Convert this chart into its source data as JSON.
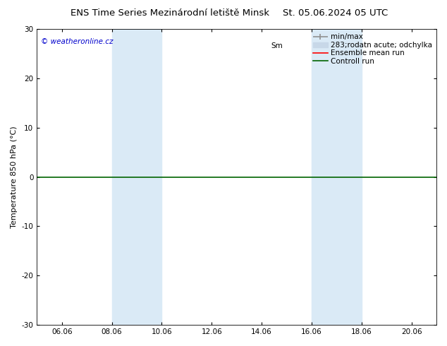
{
  "title_left": "ENS Time Series Mezinárodní letiště Minsk",
  "title_right": "St. 05.06.2024 05 UTC",
  "ylabel": "Temperature 850 hPa (°C)",
  "ylim": [
    -30,
    30
  ],
  "yticks": [
    -30,
    -20,
    -10,
    0,
    10,
    20,
    30
  ],
  "xtick_labels": [
    "06.06",
    "08.06",
    "10.06",
    "12.06",
    "14.06",
    "16.06",
    "18.06",
    "20.06"
  ],
  "xtick_positions": [
    2,
    4,
    6,
    8,
    10,
    12,
    14,
    16
  ],
  "xlim": [
    1,
    17
  ],
  "shade_bands": [
    {
      "x_start": 4,
      "x_end": 6
    },
    {
      "x_start": 12,
      "x_end": 14
    }
  ],
  "shade_color": "#daeaf6",
  "zero_line_color": "#006400",
  "zero_line_y": 0,
  "copyright_text": "© weatheronline.cz",
  "copyright_color": "#0000cc",
  "bg_color": "#ffffff",
  "title_fontsize": 9.5,
  "axis_fontsize": 8,
  "tick_fontsize": 7.5,
  "legend_fontsize": 7.5,
  "sm_label": "Sm",
  "odchylka_label": "283;rodatn acute; odchylka",
  "minmax_label": "min/max",
  "ensemble_label": "Ensemble mean run",
  "controll_label": "Controll run",
  "ensemble_color": "#ff0000",
  "controll_color": "#006400",
  "minmax_color": "#909090",
  "odchylka_color": "#c8d8e8"
}
